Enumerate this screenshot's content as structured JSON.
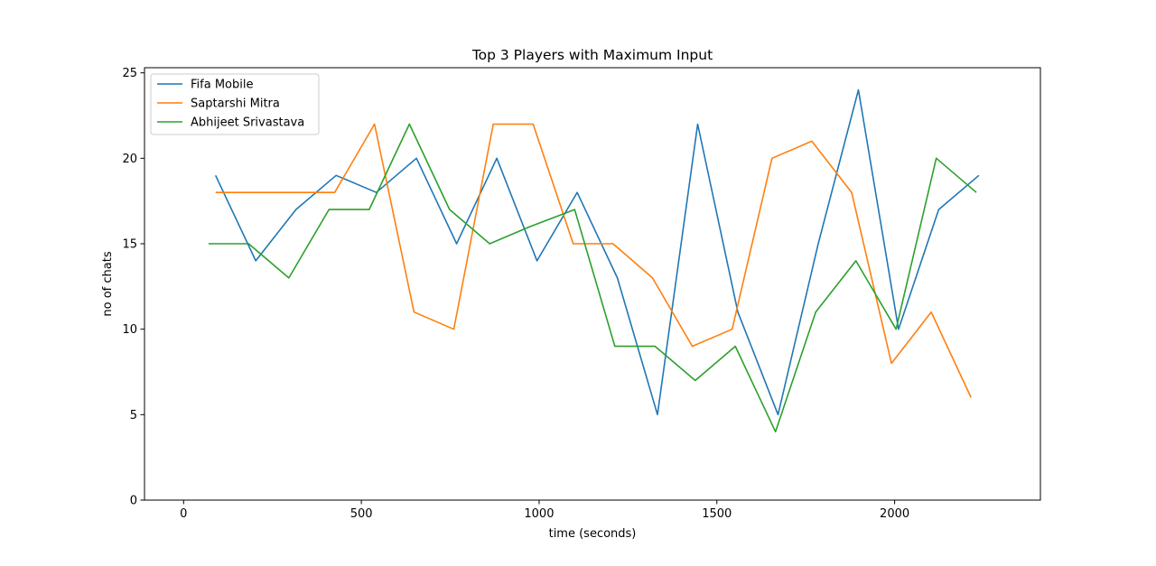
{
  "chart_data": {
    "type": "line",
    "title": "Top 3 Players with Maximum Input",
    "xlabel": "time (seconds)",
    "ylabel": "no of chats",
    "xlim": [
      -110,
      2410
    ],
    "ylim": [
      0,
      25.3
    ],
    "xticks": [
      0,
      500,
      1000,
      1500,
      2000
    ],
    "yticks": [
      0,
      5,
      10,
      15,
      20,
      25
    ],
    "grid": false,
    "legend_position": "top-left",
    "series": [
      {
        "name": "Fifa Mobile",
        "color": "#1f77b4",
        "points": [
          [
            90,
            19
          ],
          [
            203,
            14
          ],
          [
            316,
            17
          ],
          [
            429,
            19
          ],
          [
            542,
            18
          ],
          [
            655,
            20
          ],
          [
            768,
            15
          ],
          [
            881,
            20
          ],
          [
            994,
            14
          ],
          [
            1107,
            18
          ],
          [
            1220,
            13
          ],
          [
            1333,
            5
          ],
          [
            1446,
            22
          ],
          [
            1559,
            11
          ],
          [
            1672,
            5
          ],
          [
            1785,
            15
          ],
          [
            1898,
            24
          ],
          [
            2011,
            10
          ],
          [
            2124,
            17
          ],
          [
            2237,
            19
          ]
        ]
      },
      {
        "name": "Saptarshi Mitra",
        "color": "#ff7f0e",
        "points": [
          [
            90,
            18
          ],
          [
            203,
            18
          ],
          [
            316,
            18
          ],
          [
            425,
            18
          ],
          [
            537,
            22
          ],
          [
            648,
            11
          ],
          [
            760,
            10
          ],
          [
            871,
            22
          ],
          [
            983,
            22
          ],
          [
            1096,
            15
          ],
          [
            1208,
            15
          ],
          [
            1319,
            13
          ],
          [
            1431,
            9
          ],
          [
            1543,
            10
          ],
          [
            1655,
            20
          ],
          [
            1767,
            21
          ],
          [
            1879,
            18
          ],
          [
            1991,
            8
          ],
          [
            2103,
            11
          ],
          [
            2215,
            6
          ]
        ]
      },
      {
        "name": "Abhijeet Srivastava",
        "color": "#2ca02c",
        "points": [
          [
            70,
            15
          ],
          [
            183,
            15
          ],
          [
            296,
            13
          ],
          [
            409,
            17
          ],
          [
            522,
            17
          ],
          [
            635,
            22
          ],
          [
            748,
            17
          ],
          [
            861,
            15
          ],
          [
            974,
            16
          ],
          [
            1100,
            17
          ],
          [
            1213,
            9
          ],
          [
            1326,
            9
          ],
          [
            1439,
            7
          ],
          [
            1552,
            9
          ],
          [
            1665,
            4
          ],
          [
            1778,
            11
          ],
          [
            1891,
            14
          ],
          [
            2004,
            10
          ],
          [
            2117,
            20
          ],
          [
            2230,
            18
          ]
        ]
      }
    ]
  }
}
